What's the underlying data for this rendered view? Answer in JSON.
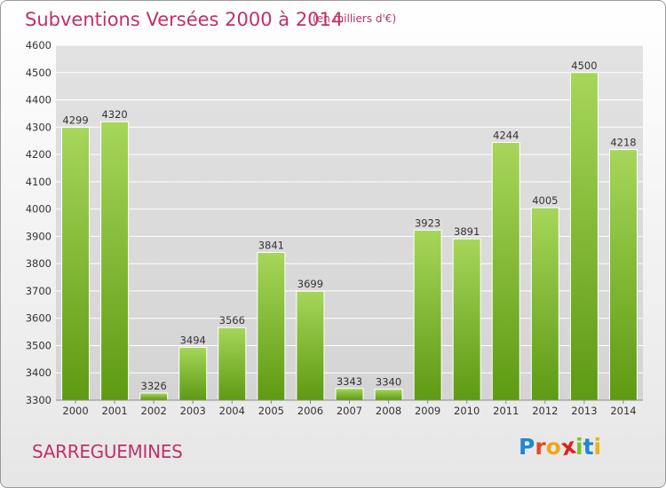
{
  "header": {
    "title": "Subventions Versées 2000 à 2014",
    "unit": "(en milliers d'€)"
  },
  "footer": {
    "commune": "SARREGUEMINES",
    "brand_letters": [
      "P",
      "r",
      "o",
      "x",
      "i",
      "t",
      "i"
    ],
    "brand_colors": [
      "#1e88d0",
      "#e84a1c",
      "#f3a51b",
      "#e0201c",
      "#7cbf2a",
      "#1e88d0",
      "#e8b21a"
    ]
  },
  "colors": {
    "bar_light": "#a6d65a",
    "bar_dark": "#5e9a12",
    "grid": "#ffffff",
    "plot_bg": "#dcdcdc",
    "title": "#c0306a"
  },
  "chart_data": {
    "type": "bar",
    "title": "Subventions Versées 2000 à 2014",
    "subtitle": "(en milliers d'€)",
    "xlabel": "",
    "ylabel": "",
    "categories": [
      "2000",
      "2001",
      "2002",
      "2003",
      "2004",
      "2005",
      "2006",
      "2007",
      "2008",
      "2009",
      "2010",
      "2011",
      "2012",
      "2013",
      "2014"
    ],
    "values": [
      4299,
      4320,
      3326,
      3494,
      3566,
      3841,
      3699,
      3343,
      3340,
      3923,
      3891,
      4244,
      4005,
      4500,
      4218
    ],
    "ylim": [
      3300,
      4600
    ],
    "yticks": [
      3300,
      3400,
      3500,
      3600,
      3700,
      3800,
      3900,
      4000,
      4100,
      4200,
      4300,
      4400,
      4500,
      4600
    ],
    "grid": true,
    "data_labels": true
  }
}
